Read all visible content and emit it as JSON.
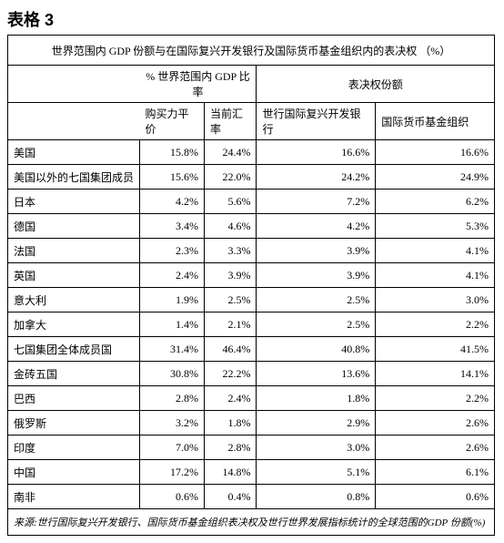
{
  "table": {
    "title": "表格 3",
    "caption": "世界范围内 GDP 份额与在国际复兴开发银行及国际货币基金组织内的表决权 （%）",
    "group1": "% 世界范围内 GDP 比率",
    "group2": "表决权份额",
    "col1": "购买力平价",
    "col2": "当前汇率",
    "col3": "世行国际复兴开发银行",
    "col4": "国际货币基金组织",
    "rows": [
      {
        "label": "美国",
        "c1": "15.8%",
        "c2": "24.4%",
        "c3": "16.6%",
        "c4": "16.6%"
      },
      {
        "label": "美国以外的七国集团成员",
        "c1": "15.6%",
        "c2": "22.0%",
        "c3": "24.2%",
        "c4": "24.9%"
      },
      {
        "label": "日本",
        "c1": "4.2%",
        "c2": "5.6%",
        "c3": "7.2%",
        "c4": "6.2%"
      },
      {
        "label": "德国",
        "c1": "3.4%",
        "c2": "4.6%",
        "c3": "4.2%",
        "c4": "5.3%"
      },
      {
        "label": "法国",
        "c1": "2.3%",
        "c2": "3.3%",
        "c3": "3.9%",
        "c4": "4.1%"
      },
      {
        "label": "英国",
        "c1": "2.4%",
        "c2": "3.9%",
        "c3": "3.9%",
        "c4": "4.1%"
      },
      {
        "label": "意大利",
        "c1": "1.9%",
        "c2": "2.5%",
        "c3": "2.5%",
        "c4": "3.0%"
      },
      {
        "label": "加拿大",
        "c1": "1.4%",
        "c2": "2.1%",
        "c3": "2.5%",
        "c4": "2.2%"
      },
      {
        "label": "七国集团全体成员国",
        "c1": "31.4%",
        "c2": "46.4%",
        "c3": "40.8%",
        "c4": "41.5%"
      },
      {
        "label": "金砖五国",
        "c1": "30.8%",
        "c2": "22.2%",
        "c3": "13.6%",
        "c4": "14.1%"
      },
      {
        "label": "巴西",
        "c1": "2.8%",
        "c2": "2.4%",
        "c3": "1.8%",
        "c4": "2.2%"
      },
      {
        "label": "俄罗斯",
        "c1": "3.2%",
        "c2": "1.8%",
        "c3": "2.9%",
        "c4": "2.6%"
      },
      {
        "label": "印度",
        "c1": "7.0%",
        "c2": "2.8%",
        "c3": "3.0%",
        "c4": "2.6%"
      },
      {
        "label": "中国",
        "c1": "17.2%",
        "c2": "14.8%",
        "c3": "5.1%",
        "c4": "6.1%"
      },
      {
        "label": "南非",
        "c1": "0.6%",
        "c2": "0.4%",
        "c3": "0.8%",
        "c4": "0.6%"
      }
    ],
    "source": "来源:世行国际复兴开发银行、国际货币基金组织表决权及世行世界发展指标统计的全球范围的GDP 份额(%)"
  },
  "style": {
    "colwidths": [
      "140px",
      "72px",
      "58px",
      "134px",
      "134px"
    ],
    "border_color": "#000000",
    "bg": "#ffffff",
    "font_body": 12,
    "font_title": 18
  }
}
